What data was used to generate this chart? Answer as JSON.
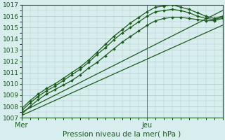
{
  "title": "Pression niveau de la mer( hPa )",
  "ylabel_values": [
    1007,
    1008,
    1009,
    1010,
    1011,
    1012,
    1013,
    1014,
    1015,
    1016,
    1017
  ],
  "ylim": [
    1007,
    1017
  ],
  "xlim": [
    0,
    48
  ],
  "bg_color": "#d8eeee",
  "grid_color": "#aacccc",
  "line_color": "#1a5c1a",
  "vline_x": 30,
  "x_ticks": [
    0,
    30
  ],
  "x_tick_labels": [
    "Mer",
    "Jeu"
  ],
  "lines": [
    {
      "x": [
        0,
        2,
        4,
        6,
        8,
        10,
        12,
        14,
        16,
        18,
        20,
        22,
        24,
        26,
        28,
        30,
        32,
        34,
        36,
        38,
        40,
        42,
        44,
        46,
        48
      ],
      "y": [
        1007.3,
        1008.0,
        1008.6,
        1009.1,
        1009.5,
        1009.9,
        1010.3,
        1010.8,
        1011.4,
        1011.9,
        1012.5,
        1013.1,
        1013.7,
        1014.2,
        1014.7,
        1015.2,
        1015.6,
        1015.8,
        1015.9,
        1015.9,
        1015.8,
        1015.7,
        1015.6,
        1015.6,
        1015.8
      ],
      "markers": true
    },
    {
      "x": [
        0,
        2,
        4,
        6,
        8,
        10,
        12,
        14,
        16,
        18,
        20,
        22,
        24,
        26,
        28,
        30,
        32,
        34,
        36,
        38,
        40,
        42,
        44,
        46,
        48
      ],
      "y": [
        1007.6,
        1008.3,
        1008.9,
        1009.4,
        1009.8,
        1010.3,
        1010.8,
        1011.3,
        1011.9,
        1012.6,
        1013.2,
        1013.9,
        1014.5,
        1015.0,
        1015.5,
        1016.0,
        1016.4,
        1016.5,
        1016.6,
        1016.5,
        1016.3,
        1016.0,
        1015.8,
        1015.7,
        1015.9
      ],
      "markers": true
    },
    {
      "x": [
        0,
        2,
        4,
        6,
        8,
        10,
        12,
        14,
        16,
        18,
        20,
        22,
        24,
        26,
        28,
        30,
        32,
        34,
        36,
        38,
        40,
        42,
        44,
        46,
        48
      ],
      "y": [
        1007.8,
        1008.5,
        1009.1,
        1009.6,
        1010.0,
        1010.5,
        1011.0,
        1011.5,
        1012.1,
        1012.8,
        1013.5,
        1014.2,
        1014.8,
        1015.4,
        1015.9,
        1016.4,
        1016.8,
        1016.9,
        1017.0,
        1016.8,
        1016.6,
        1016.3,
        1016.0,
        1015.8,
        1016.0
      ],
      "markers": true
    },
    {
      "x": [
        0,
        48
      ],
      "y": [
        1007.2,
        1015.2
      ],
      "markers": false
    },
    {
      "x": [
        0,
        48
      ],
      "y": [
        1007.5,
        1016.5
      ],
      "markers": false
    }
  ]
}
